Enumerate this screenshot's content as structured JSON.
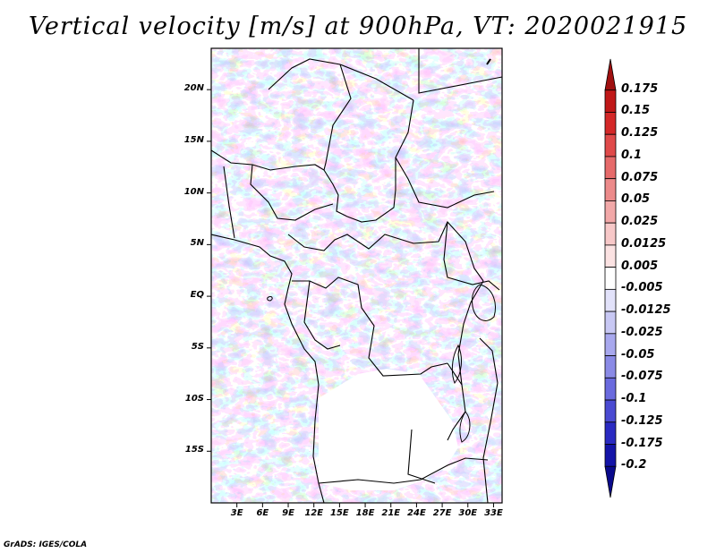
{
  "title": "Vertical velocity [m/s] at 900hPa, VT: 2020021915",
  "map": {
    "lat_range": [
      -20,
      24
    ],
    "lon_range": [
      0,
      34
    ],
    "lat_ticks": [
      {
        "lat": 20,
        "label": "20N"
      },
      {
        "lat": 15,
        "label": "15N"
      },
      {
        "lat": 10,
        "label": "10N"
      },
      {
        "lat": 5,
        "label": "5N"
      },
      {
        "lat": 0,
        "label": "EQ"
      },
      {
        "lat": -5,
        "label": "5S"
      },
      {
        "lat": -10,
        "label": "10S"
      },
      {
        "lat": -15,
        "label": "15S"
      }
    ],
    "lon_ticks": [
      {
        "lon": 3,
        "label": "3E"
      },
      {
        "lon": 6,
        "label": "6E"
      },
      {
        "lon": 9,
        "label": "9E"
      },
      {
        "lon": 12,
        "label": "12E"
      },
      {
        "lon": 15,
        "label": "15E"
      },
      {
        "lon": 18,
        "label": "18E"
      },
      {
        "lon": 21,
        "label": "21E"
      },
      {
        "lon": 24,
        "label": "24E"
      },
      {
        "lon": 27,
        "label": "27E"
      },
      {
        "lon": 30,
        "label": "30E"
      },
      {
        "lon": 33,
        "label": "33E"
      }
    ]
  },
  "colorbar": {
    "levels": [
      "0.175",
      "0.15",
      "0.125",
      "0.1",
      "0.075",
      "0.05",
      "0.025",
      "0.0125",
      "0.005",
      "-0.005",
      "-0.0125",
      "-0.025",
      "-0.05",
      "-0.075",
      "-0.1",
      "-0.125",
      "-0.175",
      "-0.2"
    ],
    "colors": [
      "#a01010",
      "#c01818",
      "#d42828",
      "#e04a4a",
      "#e66a6a",
      "#ec8a8a",
      "#f2a8a8",
      "#f7c8c8",
      "#fbe2e2",
      "#ffffff",
      "#e2e2fa",
      "#c8c8f4",
      "#a8a8ee",
      "#8a8ae6",
      "#6a6ade",
      "#4a4ad2",
      "#2a2ac2",
      "#1414a8",
      "#0a0a8c"
    ]
  },
  "credit": "GrADS: IGES/COLA"
}
